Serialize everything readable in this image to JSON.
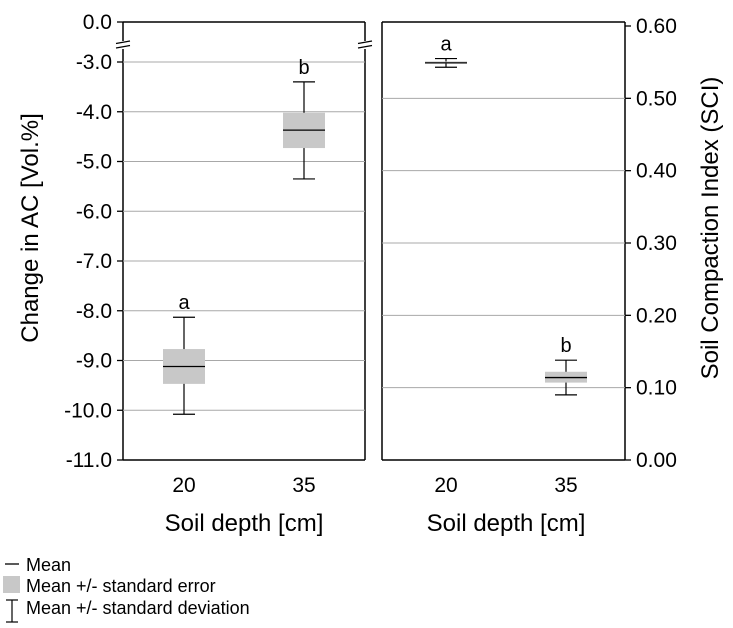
{
  "chart_data": [
    {
      "type": "box",
      "xlabel": "Soil depth [cm]",
      "ylabel": "Change in AC [Vol.%]",
      "categories": [
        "20",
        "35"
      ],
      "y_ticks": [
        "0.0",
        "-3.0",
        "-4.0",
        "-5.0",
        "-6.0",
        "-7.0",
        "-8.0",
        "-9.0",
        "-10.0",
        "-11.0"
      ],
      "axis_break": [
        0.0,
        -3.0
      ],
      "ylim": [
        -11.0,
        0.0
      ],
      "grid": true,
      "series": [
        {
          "category": "20",
          "mean": -9.12,
          "se_low": -9.47,
          "se_high": -8.77,
          "sd_low": -10.08,
          "sd_high": -8.13,
          "letter": "a"
        },
        {
          "category": "35",
          "mean": -4.37,
          "se_low": -4.73,
          "se_high": -4.02,
          "sd_low": -5.35,
          "sd_high": -3.4,
          "letter": "b"
        }
      ]
    },
    {
      "type": "box",
      "xlabel": "Soil depth [cm]",
      "ylabel": "Soil Compaction Index (SCI)",
      "categories": [
        "20",
        "35"
      ],
      "y_ticks": [
        "0.60",
        "0.50",
        "0.40",
        "0.30",
        "0.20",
        "0.10",
        "0.00"
      ],
      "ylim": [
        0.0,
        0.6
      ],
      "grid": true,
      "series": [
        {
          "category": "20",
          "mean": 0.549,
          "se_low": 0.548,
          "se_high": 0.551,
          "sd_low": 0.543,
          "sd_high": 0.555,
          "letter": "a"
        },
        {
          "category": "35",
          "mean": 0.114,
          "se_low": 0.107,
          "se_high": 0.122,
          "sd_low": 0.09,
          "sd_high": 0.138,
          "letter": "b"
        }
      ]
    }
  ],
  "legend": {
    "items": [
      {
        "symbol": "line",
        "label": "Mean"
      },
      {
        "symbol": "box",
        "label": "Mean +/- standard error"
      },
      {
        "symbol": "whisker",
        "label": "Mean +/- standard deviation"
      }
    ]
  },
  "colors": {
    "box_fill": "#c8c8c8",
    "grid": "#a8a8a8",
    "axis": "#000000"
  }
}
